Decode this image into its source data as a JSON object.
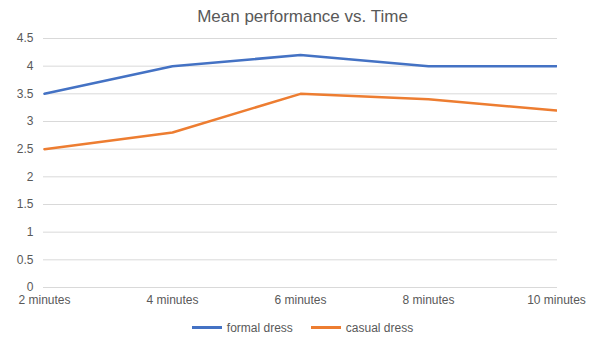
{
  "chart_data": {
    "type": "line",
    "title": "Mean performance vs. Time",
    "categories": [
      "2 minutes",
      "4 minutes",
      "6 minutes",
      "8 minutes",
      "10 minutes"
    ],
    "series": [
      {
        "name": "formal dress",
        "color": "#4472c4",
        "values": [
          3.5,
          4.0,
          4.2,
          4.0,
          4.0
        ]
      },
      {
        "name": "casual dress",
        "color": "#ed7d31",
        "values": [
          2.5,
          2.8,
          3.5,
          3.4,
          3.2
        ]
      }
    ],
    "ylim": [
      0,
      4.5
    ],
    "yticks": [
      0,
      0.5,
      1,
      1.5,
      2,
      2.5,
      3,
      3.5,
      4,
      4.5
    ],
    "grid": true,
    "legend": "bottom"
  }
}
